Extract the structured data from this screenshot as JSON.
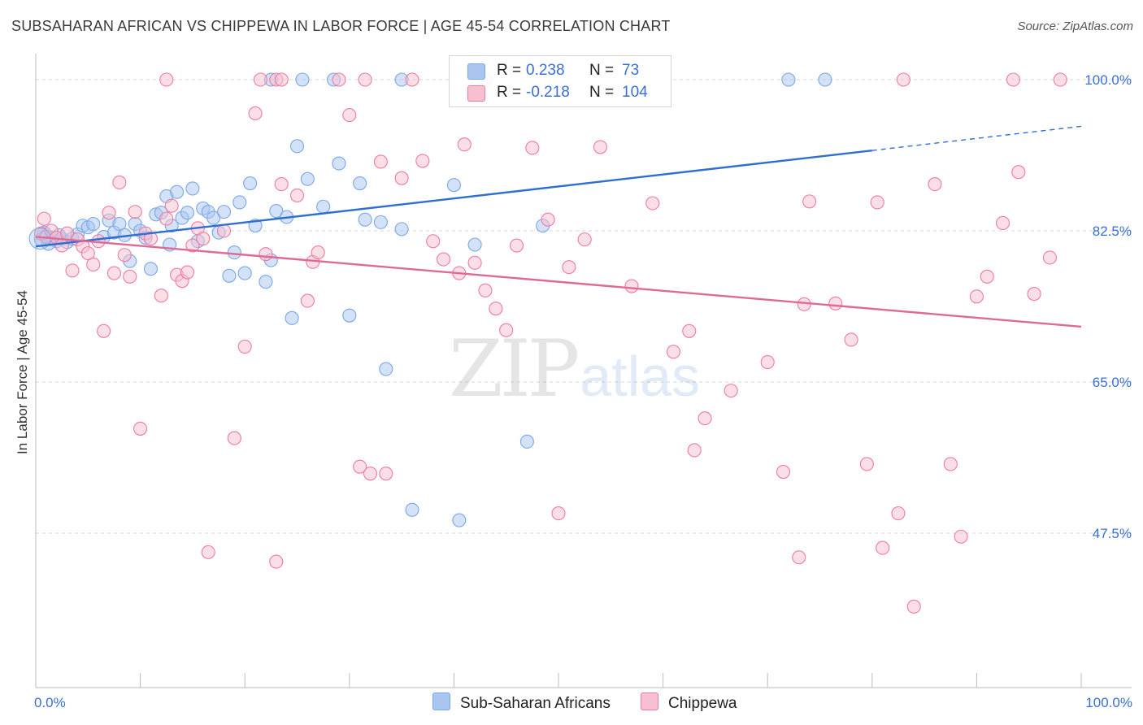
{
  "title": "SUBSAHARAN AFRICAN VS CHIPPEWA IN LABOR FORCE | AGE 45-54 CORRELATION CHART",
  "source": "Source: ZipAtlas.com",
  "watermark": {
    "zip": "ZIP",
    "atlas": "atlas"
  },
  "legend_top": [
    {
      "r_label": "R =",
      "r_value": "0.238",
      "n_label": "N =",
      "n_value": "73",
      "color": "#7aa7e8"
    },
    {
      "r_label": "R =",
      "r_value": "-0.218",
      "n_label": "N =",
      "n_value": "104",
      "color": "#f29ab8"
    }
  ],
  "legend_bottom": [
    {
      "label": "Sub-Saharan Africans",
      "color": "#a8c6f0"
    },
    {
      "label": "Chippewa",
      "color": "#f7bfd0"
    }
  ],
  "chart_data": {
    "type": "scatter",
    "title": "SUBSAHARAN AFRICAN VS CHIPPEWA IN LABOR FORCE | AGE 45-54 CORRELATION CHART",
    "xlabel": "",
    "ylabel": "In Labor Force | Age 45-54",
    "xlim": [
      0,
      100
    ],
    "ylim": [
      30,
      102
    ],
    "x_tick_labels": [
      "0.0%",
      "100.0%"
    ],
    "y_ticks": [
      47.5,
      65.0,
      82.5,
      100.0
    ],
    "y_tick_labels": [
      "47.5%",
      "65.0%",
      "82.5%",
      "100.0%"
    ],
    "grid": true,
    "series": [
      {
        "name": "Sub-Saharan Africans",
        "color": "#7aa7e8",
        "fill": "#a8c6f0",
        "trend": {
          "x0": 0,
          "y0": 80.7,
          "x1": 80,
          "y1": 91.8,
          "dash_to_x": 100,
          "dash_to_y": 94.6
        },
        "points": [
          [
            0.5,
            81.5
          ],
          [
            1.0,
            82.0
          ],
          [
            1.5,
            81.7
          ],
          [
            2.0,
            81.3
          ],
          [
            2.5,
            81.6
          ],
          [
            3.0,
            81.2
          ],
          [
            3.5,
            81.6
          ],
          [
            4.0,
            82.1
          ],
          [
            4.5,
            83.1
          ],
          [
            5.0,
            82.9
          ],
          [
            5.5,
            83.3
          ],
          [
            6.5,
            81.8
          ],
          [
            7.0,
            83.7
          ],
          [
            7.5,
            82.3
          ],
          [
            8.0,
            83.3
          ],
          [
            8.5,
            82.0
          ],
          [
            9.0,
            79.0
          ],
          [
            9.5,
            83.3
          ],
          [
            10.0,
            82.5
          ],
          [
            10.5,
            81.7
          ],
          [
            11.0,
            78.1
          ],
          [
            11.5,
            84.4
          ],
          [
            12.0,
            84.6
          ],
          [
            12.5,
            86.5
          ],
          [
            12.8,
            80.9
          ],
          [
            13.0,
            83.1
          ],
          [
            13.5,
            87.0
          ],
          [
            14.0,
            84.0
          ],
          [
            14.5,
            84.6
          ],
          [
            15.0,
            87.4
          ],
          [
            15.5,
            81.3
          ],
          [
            16.0,
            85.1
          ],
          [
            16.5,
            84.7
          ],
          [
            17.0,
            84.0
          ],
          [
            17.5,
            82.3
          ],
          [
            18.0,
            84.7
          ],
          [
            18.5,
            77.3
          ],
          [
            19.0,
            80.0
          ],
          [
            19.5,
            85.8
          ],
          [
            20.0,
            77.6
          ],
          [
            20.5,
            88.0
          ],
          [
            21.0,
            83.1
          ],
          [
            22.0,
            76.6
          ],
          [
            22.5,
            79.1
          ],
          [
            23.0,
            84.8
          ],
          [
            24.0,
            84.1
          ],
          [
            24.5,
            72.4
          ],
          [
            25.0,
            92.3
          ],
          [
            26.0,
            88.5
          ],
          [
            27.5,
            85.3
          ],
          [
            29.0,
            90.3
          ],
          [
            30.0,
            72.7
          ],
          [
            31.0,
            88.0
          ],
          [
            31.5,
            83.8
          ],
          [
            33.0,
            83.5
          ],
          [
            33.5,
            66.5
          ],
          [
            35.0,
            82.7
          ],
          [
            36.0,
            50.2
          ],
          [
            40.0,
            87.8
          ],
          [
            40.5,
            49.0
          ],
          [
            42.0,
            80.9
          ],
          [
            47.0,
            58.1
          ],
          [
            48.5,
            83.1
          ],
          [
            22.5,
            100.0
          ],
          [
            25.5,
            100.0
          ],
          [
            28.5,
            100.0
          ],
          [
            35.0,
            100.0
          ],
          [
            43.0,
            100.0
          ],
          [
            72.0,
            100.0
          ],
          [
            75.5,
            100.0
          ],
          [
            0.8,
            82.3
          ],
          [
            1.2,
            81.0
          ],
          [
            2.2,
            82.0
          ]
        ]
      },
      {
        "name": "Chippewa",
        "color": "#ee7aa2",
        "fill": "#f7bfd0",
        "trend": {
          "x0": 0,
          "y0": 81.8,
          "x1": 100,
          "y1": 71.4
        },
        "points": [
          [
            0.5,
            82.2
          ],
          [
            0.8,
            83.9
          ],
          [
            1.0,
            81.8
          ],
          [
            1.5,
            82.5
          ],
          [
            2.0,
            81.7
          ],
          [
            2.5,
            80.8
          ],
          [
            3.0,
            82.2
          ],
          [
            3.5,
            77.9
          ],
          [
            4.0,
            81.5
          ],
          [
            4.5,
            80.7
          ],
          [
            5.0,
            79.9
          ],
          [
            5.5,
            78.6
          ],
          [
            6.0,
            81.3
          ],
          [
            6.5,
            70.9
          ],
          [
            7.0,
            84.6
          ],
          [
            7.5,
            77.6
          ],
          [
            8.0,
            88.1
          ],
          [
            8.5,
            79.7
          ],
          [
            9.0,
            77.2
          ],
          [
            9.5,
            84.7
          ],
          [
            10.0,
            59.6
          ],
          [
            10.5,
            82.2
          ],
          [
            11.0,
            81.6
          ],
          [
            12.0,
            75.0
          ],
          [
            12.5,
            83.9
          ],
          [
            13.0,
            85.4
          ],
          [
            13.5,
            77.4
          ],
          [
            14.0,
            76.7
          ],
          [
            14.5,
            77.7
          ],
          [
            15.0,
            80.8
          ],
          [
            15.5,
            82.8
          ],
          [
            16.0,
            81.6
          ],
          [
            16.5,
            45.3
          ],
          [
            18.0,
            82.5
          ],
          [
            19.0,
            58.5
          ],
          [
            20.0,
            69.1
          ],
          [
            21.0,
            96.1
          ],
          [
            22.0,
            79.8
          ],
          [
            23.0,
            44.2
          ],
          [
            23.5,
            87.9
          ],
          [
            25.0,
            86.6
          ],
          [
            26.0,
            74.4
          ],
          [
            26.5,
            78.9
          ],
          [
            27.0,
            80.0
          ],
          [
            30.0,
            95.9
          ],
          [
            31.0,
            55.2
          ],
          [
            32.0,
            54.4
          ],
          [
            33.0,
            90.5
          ],
          [
            33.5,
            54.4
          ],
          [
            35.0,
            88.6
          ],
          [
            37.0,
            90.6
          ],
          [
            38.0,
            81.3
          ],
          [
            39.0,
            79.2
          ],
          [
            40.5,
            77.6
          ],
          [
            41.0,
            92.5
          ],
          [
            42.0,
            78.8
          ],
          [
            43.0,
            75.6
          ],
          [
            44.0,
            73.5
          ],
          [
            45.0,
            71.0
          ],
          [
            46.0,
            80.8
          ],
          [
            47.5,
            92.1
          ],
          [
            49.0,
            83.8
          ],
          [
            50.0,
            49.8
          ],
          [
            51.0,
            78.3
          ],
          [
            52.5,
            81.5
          ],
          [
            54.0,
            92.2
          ],
          [
            57.0,
            76.1
          ],
          [
            59.0,
            85.7
          ],
          [
            61.0,
            68.5
          ],
          [
            62.5,
            70.9
          ],
          [
            63.0,
            57.1
          ],
          [
            64.0,
            60.8
          ],
          [
            66.5,
            64.0
          ],
          [
            70.0,
            67.3
          ],
          [
            71.5,
            54.6
          ],
          [
            73.0,
            44.7
          ],
          [
            74.0,
            85.9
          ],
          [
            76.5,
            74.1
          ],
          [
            78.0,
            69.9
          ],
          [
            79.5,
            55.5
          ],
          [
            80.5,
            85.8
          ],
          [
            81.0,
            45.8
          ],
          [
            82.5,
            49.8
          ],
          [
            83.0,
            100.0
          ],
          [
            84.0,
            39.0
          ],
          [
            86.0,
            87.9
          ],
          [
            87.5,
            55.5
          ],
          [
            88.5,
            47.1
          ],
          [
            90.0,
            74.9
          ],
          [
            91.0,
            77.2
          ],
          [
            92.5,
            83.4
          ],
          [
            93.5,
            100.0
          ],
          [
            94.0,
            89.3
          ],
          [
            95.5,
            75.2
          ],
          [
            97.0,
            79.4
          ],
          [
            98.0,
            100.0
          ],
          [
            12.5,
            100.0
          ],
          [
            21.5,
            100.0
          ],
          [
            23.0,
            100.0
          ],
          [
            29.0,
            100.0
          ],
          [
            31.5,
            100.0
          ],
          [
            36.0,
            100.0
          ],
          [
            23.5,
            100.0
          ],
          [
            73.5,
            74.0
          ]
        ]
      }
    ]
  }
}
